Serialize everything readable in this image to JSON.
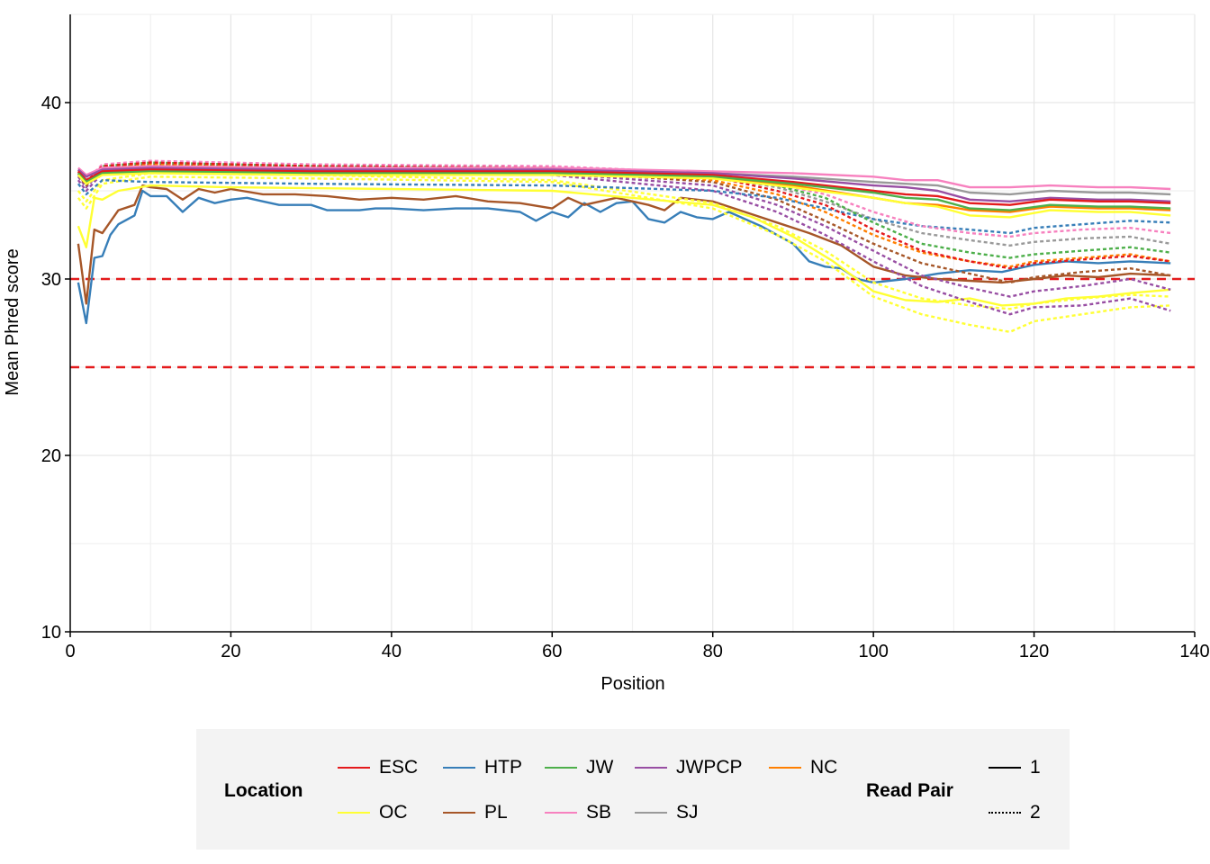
{
  "chart_data": {
    "type": "line",
    "xlabel": "Position",
    "ylabel": "Mean Phred score",
    "xlim": [
      0,
      140
    ],
    "ylim": [
      10,
      45
    ],
    "x_ticks": [
      0,
      20,
      40,
      60,
      80,
      100,
      120,
      140
    ],
    "y_ticks": [
      10,
      20,
      30,
      40
    ],
    "grid": true,
    "reference_lines": [
      {
        "y": 30,
        "color": "#e41a1c",
        "style": "dashed"
      },
      {
        "y": 25,
        "color": "#e41a1c",
        "style": "dashed"
      }
    ],
    "legend": {
      "placement": "bottom",
      "location_title": "Location",
      "locations": [
        {
          "name": "ESC",
          "color": "#e41a1c"
        },
        {
          "name": "HTP",
          "color": "#377eb8"
        },
        {
          "name": "JW",
          "color": "#4daf4a"
        },
        {
          "name": "JWPCP",
          "color": "#984ea3"
        },
        {
          "name": "NC",
          "color": "#ff7f00"
        },
        {
          "name": "OC",
          "color": "#ffff33"
        },
        {
          "name": "PL",
          "color": "#a65628"
        },
        {
          "name": "SB",
          "color": "#f781bf"
        },
        {
          "name": "SJ",
          "color": "#999999"
        }
      ],
      "readpair_title": "Read Pair",
      "read_pairs": [
        {
          "name": "1",
          "style": "solid"
        },
        {
          "name": "2",
          "style": "dotted"
        }
      ]
    },
    "series": [
      {
        "location": "HTP",
        "read_pair": "1",
        "x": [
          1,
          2,
          3,
          4,
          5,
          6,
          8,
          9,
          10,
          12,
          14,
          16,
          18,
          20,
          22,
          24,
          26,
          30,
          32,
          36,
          38,
          40,
          44,
          48,
          52,
          56,
          58,
          60,
          62,
          64,
          66,
          68,
          70,
          72,
          74,
          76,
          78,
          80,
          82,
          86,
          90,
          92,
          94,
          96,
          98,
          100,
          104,
          108,
          112,
          116,
          120,
          124,
          128,
          132,
          137
        ],
        "y": [
          29.8,
          27.5,
          31.2,
          31.3,
          32.5,
          33.1,
          33.6,
          35.0,
          34.7,
          34.7,
          33.8,
          34.6,
          34.3,
          34.5,
          34.6,
          34.4,
          34.2,
          34.2,
          33.9,
          33.9,
          34.0,
          34.0,
          33.9,
          34.0,
          34.0,
          33.8,
          33.3,
          33.8,
          33.5,
          34.3,
          33.8,
          34.3,
          34.4,
          33.4,
          33.2,
          33.8,
          33.5,
          33.4,
          33.8,
          33.0,
          32.0,
          31.0,
          30.7,
          30.6,
          30.0,
          29.8,
          30.0,
          30.3,
          30.5,
          30.4,
          30.8,
          31.0,
          30.9,
          31.0,
          30.9
        ]
      },
      {
        "location": "PL",
        "read_pair": "1",
        "x": [
          1,
          2,
          3,
          4,
          6,
          8,
          9,
          10,
          12,
          14,
          16,
          18,
          20,
          24,
          28,
          32,
          36,
          40,
          44,
          48,
          52,
          56,
          60,
          62,
          64,
          68,
          72,
          74,
          76,
          80,
          84,
          88,
          92,
          96,
          100,
          104,
          108,
          112,
          116,
          120,
          124,
          128,
          132,
          137
        ],
        "y": [
          32.0,
          28.6,
          32.8,
          32.6,
          33.9,
          34.2,
          35.3,
          35.2,
          35.1,
          34.5,
          35.1,
          34.9,
          35.1,
          34.8,
          34.8,
          34.7,
          34.5,
          34.6,
          34.5,
          34.7,
          34.4,
          34.3,
          34.0,
          34.6,
          34.2,
          34.6,
          34.2,
          33.9,
          34.6,
          34.4,
          33.8,
          33.2,
          32.6,
          31.9,
          30.7,
          30.2,
          30.0,
          29.9,
          29.8,
          30.0,
          30.2,
          30.1,
          30.3,
          30.2
        ]
      },
      {
        "location": "OC",
        "read_pair": "1",
        "x": [
          1,
          2,
          3,
          4,
          6,
          10,
          20,
          40,
          60,
          80,
          85,
          90,
          95,
          100,
          104,
          108,
          112,
          116,
          120,
          124,
          128,
          132,
          137
        ],
        "y": [
          33.0,
          31.8,
          34.6,
          34.5,
          35.0,
          35.3,
          35.2,
          35.1,
          35.0,
          34.2,
          33.5,
          32.4,
          31.0,
          29.3,
          28.8,
          28.7,
          28.9,
          28.5,
          28.6,
          28.9,
          29.0,
          29.2,
          29.4
        ]
      },
      {
        "location": "OC",
        "read_pair": "2",
        "x": [
          1,
          2,
          4,
          10,
          30,
          60,
          80,
          88,
          94,
          100,
          106,
          112,
          117,
          120,
          126,
          132,
          137
        ],
        "y": [
          34.6,
          34.0,
          35.4,
          35.8,
          35.7,
          35.5,
          34.0,
          32.5,
          31.0,
          29.0,
          28.0,
          27.4,
          27.0,
          27.6,
          28.0,
          28.4,
          28.5
        ]
      },
      {
        "location": "OC",
        "read_pair": "2",
        "x": [
          1,
          2,
          4,
          10,
          30,
          60,
          80,
          88,
          94,
          100,
          106,
          112,
          117,
          120,
          126,
          132,
          137
        ],
        "y": [
          35.0,
          34.4,
          35.6,
          36.0,
          35.9,
          35.6,
          34.3,
          33.0,
          31.6,
          29.8,
          28.9,
          28.5,
          28.3,
          28.6,
          28.9,
          29.1,
          29.0
        ]
      },
      {
        "location": "JWPCP",
        "read_pair": "2",
        "x": [
          1,
          2,
          4,
          10,
          30,
          60,
          80,
          88,
          94,
          100,
          106,
          112,
          117,
          120,
          126,
          132,
          137
        ],
        "y": [
          35.6,
          35.0,
          36.0,
          36.3,
          36.1,
          35.9,
          35.0,
          33.8,
          32.5,
          31.0,
          29.6,
          28.7,
          28.0,
          28.4,
          28.5,
          28.9,
          28.2
        ]
      },
      {
        "location": "JWPCP",
        "read_pair": "2",
        "x": [
          1,
          2,
          4,
          10,
          30,
          60,
          80,
          88,
          94,
          100,
          106,
          112,
          117,
          120,
          126,
          132,
          137
        ],
        "y": [
          35.8,
          35.2,
          36.2,
          36.4,
          36.2,
          36.0,
          35.3,
          34.2,
          33.0,
          31.6,
          30.2,
          29.5,
          29.0,
          29.3,
          29.6,
          30.0,
          29.4
        ]
      },
      {
        "location": "PL",
        "read_pair": "2",
        "x": [
          1,
          2,
          4,
          10,
          30,
          60,
          80,
          88,
          94,
          100,
          106,
          112,
          117,
          120,
          126,
          132,
          137
        ],
        "y": [
          35.9,
          35.3,
          36.3,
          36.5,
          36.3,
          36.1,
          35.5,
          34.5,
          33.3,
          32.0,
          30.9,
          30.3,
          29.8,
          30.1,
          30.4,
          30.6,
          30.2
        ]
      },
      {
        "location": "NC",
        "read_pair": "2",
        "x": [
          1,
          2,
          4,
          10,
          30,
          60,
          80,
          88,
          94,
          100,
          106,
          112,
          117,
          120,
          126,
          132,
          137
        ],
        "y": [
          36.0,
          35.4,
          36.3,
          36.5,
          36.3,
          36.2,
          35.6,
          34.8,
          33.8,
          32.5,
          31.5,
          31.0,
          30.7,
          31.0,
          31.2,
          31.4,
          31.0
        ]
      },
      {
        "location": "SJ",
        "read_pair": "2",
        "x": [
          1,
          2,
          4,
          10,
          30,
          60,
          80,
          88,
          94,
          100,
          106,
          112,
          117,
          120,
          126,
          132,
          137
        ],
        "y": [
          36.1,
          35.5,
          36.4,
          36.6,
          36.4,
          36.3,
          35.8,
          35.2,
          34.4,
          33.4,
          32.6,
          32.2,
          31.9,
          32.1,
          32.3,
          32.4,
          32.0
        ]
      },
      {
        "location": "HTP",
        "read_pair": "2",
        "x": [
          1,
          2,
          4,
          10,
          30,
          60,
          80,
          88,
          94,
          100,
          106,
          112,
          117,
          120,
          126,
          132,
          137
        ],
        "y": [
          35.4,
          34.8,
          35.6,
          35.5,
          35.4,
          35.3,
          35.0,
          34.6,
          34.0,
          33.4,
          33.0,
          32.8,
          32.6,
          32.9,
          33.1,
          33.3,
          33.2
        ]
      },
      {
        "location": "SB",
        "read_pair": "2",
        "x": [
          1,
          2,
          4,
          10,
          30,
          60,
          80,
          88,
          94,
          100,
          106,
          112,
          117,
          120,
          126,
          132,
          137
        ],
        "y": [
          36.2,
          35.6,
          36.5,
          36.7,
          36.5,
          36.4,
          36.0,
          35.4,
          34.8,
          33.8,
          33.0,
          32.6,
          32.4,
          32.6,
          32.8,
          32.9,
          32.6
        ]
      },
      {
        "location": "JW",
        "read_pair": "2",
        "x": [
          1,
          2,
          4,
          10,
          30,
          60,
          80,
          88,
          94,
          100,
          106,
          112,
          117,
          120,
          126,
          132,
          137
        ],
        "y": [
          36.0,
          35.4,
          36.4,
          36.6,
          36.4,
          36.3,
          35.9,
          35.3,
          34.6,
          33.2,
          32.0,
          31.5,
          31.2,
          31.4,
          31.6,
          31.8,
          31.5
        ]
      },
      {
        "location": "ESC",
        "read_pair": "2",
        "x": [
          1,
          2,
          4,
          10,
          30,
          60,
          80,
          88,
          94,
          100,
          106,
          112,
          117,
          120,
          126,
          132,
          137
        ],
        "y": [
          36.1,
          35.5,
          36.4,
          36.6,
          36.4,
          36.3,
          35.8,
          35.0,
          34.2,
          32.8,
          31.6,
          31.0,
          30.6,
          30.9,
          31.1,
          31.3,
          31.0
        ]
      },
      {
        "location": "SJ",
        "read_pair": "1",
        "x": [
          1,
          2,
          4,
          10,
          30,
          60,
          80,
          90,
          100,
          104,
          108,
          112,
          117,
          122,
          128,
          132,
          137
        ],
        "y": [
          36.2,
          35.8,
          36.2,
          36.3,
          36.2,
          36.2,
          36.0,
          35.8,
          35.5,
          35.4,
          35.3,
          34.9,
          34.8,
          35.0,
          34.9,
          34.9,
          34.8
        ]
      },
      {
        "location": "SB",
        "read_pair": "1",
        "x": [
          1,
          2,
          4,
          10,
          30,
          60,
          80,
          90,
          100,
          104,
          108,
          112,
          117,
          122,
          128,
          132,
          137
        ],
        "y": [
          36.3,
          35.9,
          36.3,
          36.4,
          36.3,
          36.3,
          36.1,
          36.0,
          35.8,
          35.6,
          35.6,
          35.2,
          35.2,
          35.3,
          35.2,
          35.2,
          35.1
        ]
      },
      {
        "location": "JWPCP",
        "read_pair": "1",
        "x": [
          1,
          2,
          4,
          10,
          30,
          60,
          80,
          90,
          100,
          104,
          108,
          112,
          117,
          122,
          128,
          132,
          137
        ],
        "y": [
          36.2,
          35.8,
          36.2,
          36.3,
          36.2,
          36.2,
          36.0,
          35.7,
          35.3,
          35.2,
          35.0,
          34.5,
          34.4,
          34.6,
          34.5,
          34.5,
          34.4
        ]
      },
      {
        "location": "NC",
        "read_pair": "1",
        "x": [
          1,
          2,
          4,
          10,
          30,
          60,
          80,
          90,
          100,
          104,
          108,
          112,
          117,
          122,
          128,
          132,
          137
        ],
        "y": [
          36.0,
          35.5,
          36.0,
          36.1,
          36.0,
          36.0,
          35.8,
          35.3,
          34.6,
          34.3,
          34.2,
          33.9,
          33.8,
          34.1,
          34.0,
          34.0,
          33.9
        ]
      },
      {
        "location": "ESC",
        "read_pair": "1",
        "x": [
          1,
          2,
          4,
          10,
          30,
          60,
          80,
          90,
          100,
          104,
          108,
          112,
          117,
          122,
          128,
          132,
          137
        ],
        "y": [
          36.1,
          35.6,
          36.1,
          36.2,
          36.1,
          36.1,
          35.9,
          35.5,
          35.0,
          34.8,
          34.7,
          34.3,
          34.2,
          34.5,
          34.4,
          34.4,
          34.3
        ]
      },
      {
        "location": "JW",
        "read_pair": "1",
        "x": [
          1,
          2,
          4,
          10,
          30,
          60,
          80,
          90,
          100,
          104,
          108,
          112,
          117,
          122,
          128,
          132,
          137
        ],
        "y": [
          36.0,
          35.5,
          36.0,
          36.1,
          36.0,
          36.0,
          35.8,
          35.4,
          34.9,
          34.6,
          34.5,
          34.0,
          33.9,
          34.2,
          34.1,
          34.1,
          34.0
        ]
      },
      {
        "location": "OC",
        "read_pair": "1",
        "x": [
          1,
          2,
          4,
          10,
          30,
          60,
          80,
          90,
          100,
          104,
          108,
          112,
          117,
          122,
          128,
          132,
          137
        ],
        "y": [
          35.9,
          35.4,
          35.9,
          36.0,
          35.9,
          35.9,
          35.7,
          35.2,
          34.6,
          34.3,
          34.1,
          33.6,
          33.5,
          33.9,
          33.8,
          33.8,
          33.6
        ]
      }
    ]
  }
}
